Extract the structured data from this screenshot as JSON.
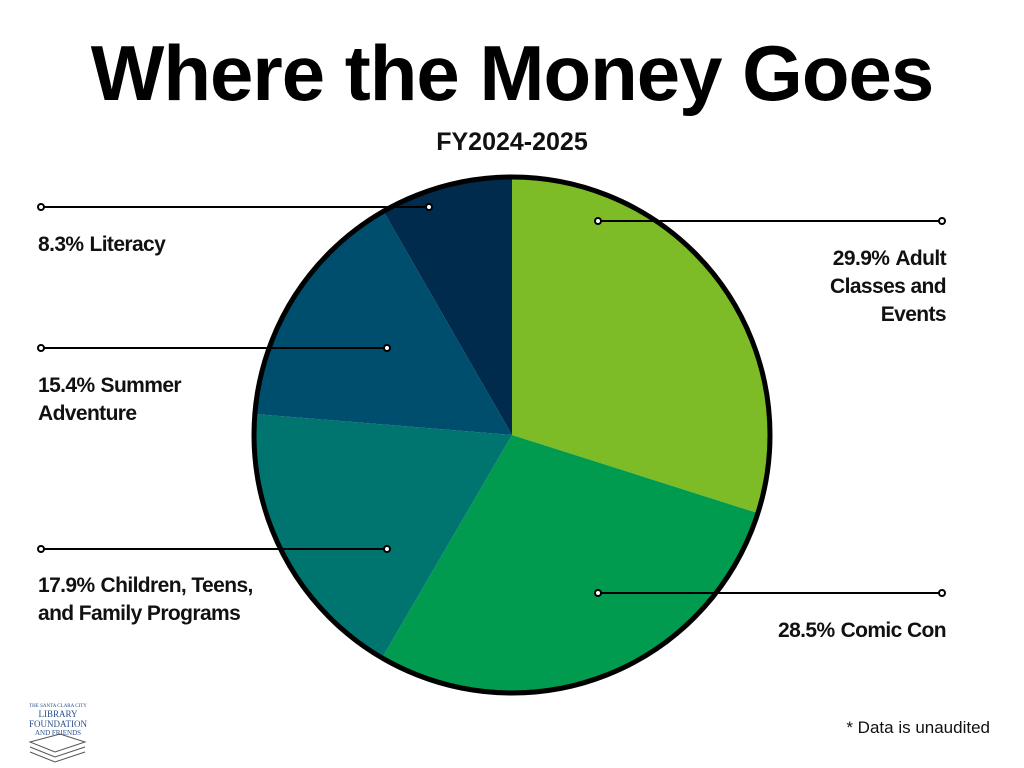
{
  "chart_data": {
    "type": "pie",
    "title": "Where the Money Goes",
    "subtitle": "FY2024-2025",
    "categories": [
      "Adult Classes and Events",
      "Comic Con",
      "Children, Teens, and Family Programs",
      "Summer Adventure",
      "Literacy"
    ],
    "values": [
      29.9,
      28.5,
      17.9,
      15.4,
      8.3
    ],
    "value_labels": [
      "29.9%",
      "28.5%",
      "17.9%",
      "15.4%",
      "8.3%"
    ],
    "colors": [
      "#7dbb27",
      "#009b4e",
      "#00746f",
      "#004e6e",
      "#002b4d"
    ],
    "footnote": "* Data is unaudited"
  },
  "logo": {
    "lines": [
      "THE SANTA CLARA CITY",
      "LIBRARY FOUNDATION",
      "AND FRIENDS"
    ]
  }
}
